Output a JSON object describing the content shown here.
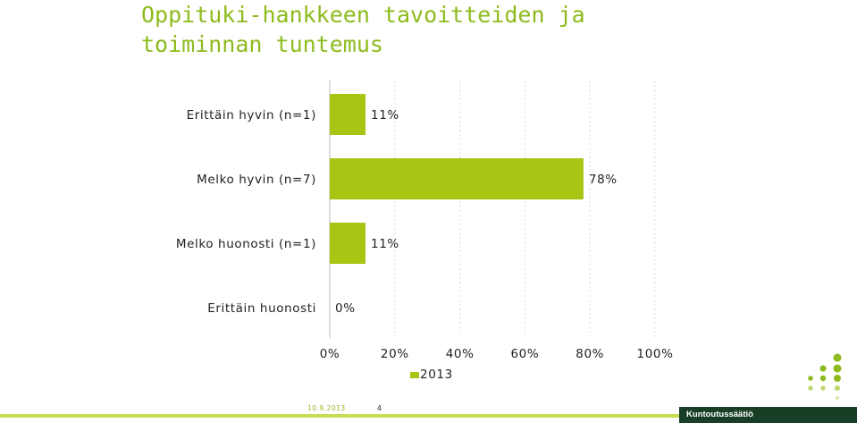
{
  "title_line1": "Oppituki-hankkeen tavoitteiden ja",
  "title_line2": "toiminnan tuntemus",
  "footer": {
    "date": "10.9.2013",
    "page": "4",
    "brand": "Kuntoutussäätiö"
  },
  "colors": {
    "bar": "#a9c514",
    "title": "#8dbb1d",
    "footer_bar": "#c7dd52",
    "brand_bg": "#183f26"
  },
  "chart_data": {
    "type": "bar",
    "orientation": "horizontal",
    "categories": [
      "Erittäin hyvin (n=1)",
      "Melko hyvin (n=7)",
      "Melko huonosti (n=1)",
      "Erittäin huonosti"
    ],
    "series": [
      {
        "name": "2013",
        "values": [
          11,
          78,
          11,
          0
        ]
      }
    ],
    "data_labels": [
      "11%",
      "78%",
      "11%",
      "0%"
    ],
    "x_ticks": [
      "0%",
      "20%",
      "40%",
      "60%",
      "80%",
      "100%"
    ],
    "xlim": [
      0,
      100
    ],
    "grid": true,
    "legend": "bottom-center",
    "xlabel": "",
    "ylabel": ""
  }
}
